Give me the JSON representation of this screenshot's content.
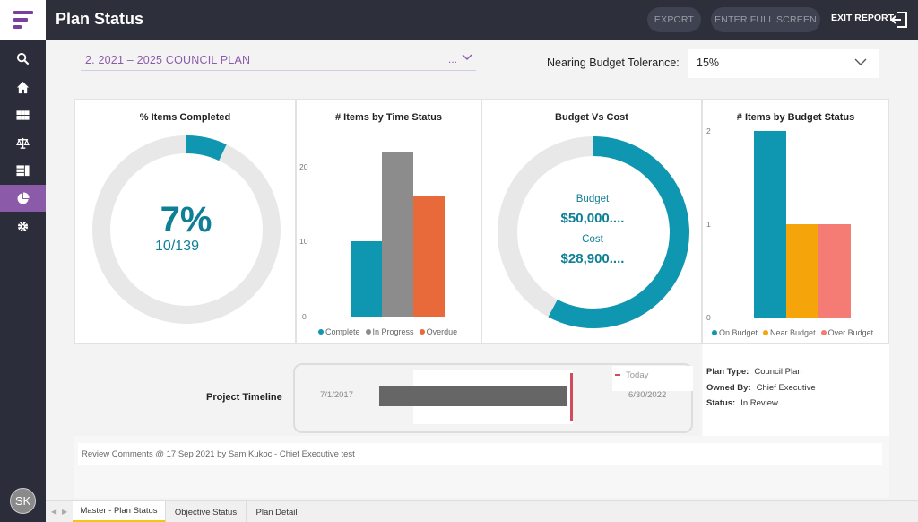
{
  "header": {
    "title": "Plan Status",
    "export_label": "EXPORT",
    "fullscreen_label": "ENTER FULL SCREEN",
    "exit_label": "EXIT REPORT"
  },
  "user": {
    "initials": "SK"
  },
  "sidebar": {
    "items": [
      {
        "icon": "search-icon",
        "active": false
      },
      {
        "icon": "home-icon",
        "active": false
      },
      {
        "icon": "grid-icon",
        "active": false
      },
      {
        "icon": "scale-icon",
        "active": false
      },
      {
        "icon": "list-icon",
        "active": false
      },
      {
        "icon": "pie-chart-icon",
        "active": true
      },
      {
        "icon": "gear-icon",
        "active": false
      }
    ]
  },
  "filters": {
    "plan_value": "2. 2021 – 2025 COUNCIL PLAN",
    "plan_ellipsis": "...",
    "tolerance_label": "Nearing Budget Tolerance:",
    "tolerance_value": "15%"
  },
  "colors": {
    "teal": "#0f96b0",
    "gray": "#8c8c8c",
    "orange": "#e8693a",
    "amber": "#f5a40a",
    "salmon": "#f47c74",
    "ring": "#e8e8e8",
    "accent": "#8b5aa8"
  },
  "chart_data": [
    {
      "type": "pie",
      "title": "% Items Completed",
      "center_value": "7%",
      "center_sub": "10/139",
      "completed_fraction": 0.07
    },
    {
      "type": "bar",
      "title": "# Items by Time Status",
      "categories": [
        "Complete",
        "In Progress",
        "Overdue"
      ],
      "values": [
        10,
        22,
        16
      ],
      "colors": [
        "#0f96b0",
        "#8c8c8c",
        "#e8693a"
      ],
      "yticks": [
        "0",
        "10",
        "20"
      ],
      "ylim": [
        0,
        22
      ]
    },
    {
      "type": "pie",
      "title": "Budget Vs Cost",
      "budget_label": "Budget",
      "budget_value": "$50,000....",
      "cost_label": "Cost",
      "cost_value": "$28,900....",
      "cost_fraction": 0.578
    },
    {
      "type": "bar",
      "title": "# Items by Budget Status",
      "categories": [
        "On Budget",
        "Near Budget",
        "Over Budget"
      ],
      "values": [
        2,
        1,
        1
      ],
      "colors": [
        "#0f96b0",
        "#f5a40a",
        "#f47c74"
      ],
      "yticks": [
        "0",
        "1",
        "2"
      ],
      "ylim": [
        0,
        2
      ]
    }
  ],
  "timeline": {
    "label": "Project Timeline",
    "start": "7/1/2017",
    "end": "6/30/2022",
    "today_label": "Today"
  },
  "plan_info": {
    "type_label": "Plan Type:",
    "type_value": "Council Plan",
    "owner_label": "Owned By:",
    "owner_value": "Chief Executive",
    "status_label": "Status:",
    "status_value": "In Review"
  },
  "comments": {
    "text": "Review Comments @ 17 Sep 2021 by Sam Kukoc - Chief Executive test"
  },
  "tabs": [
    {
      "label": "Master - Plan Status",
      "active": true
    },
    {
      "label": "Objective Status",
      "active": false
    },
    {
      "label": "Plan Detail",
      "active": false
    }
  ]
}
